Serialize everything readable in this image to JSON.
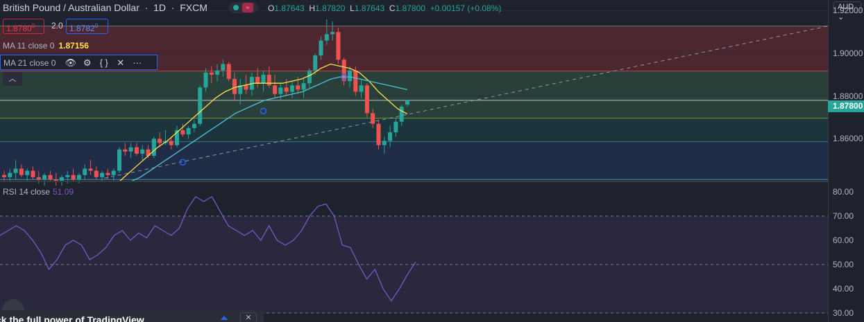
{
  "header": {
    "symbol": "British Pound / Australian Dollar",
    "interval": "1D",
    "exchange": "FXCM",
    "ohlc": {
      "o_label": "O",
      "o": "1.87643",
      "h_label": "H",
      "h": "1.87820",
      "l_label": "L",
      "l": "1.87643",
      "c_label": "C",
      "c": "1.87800",
      "change": "+0.00157 (+0.08%)"
    }
  },
  "trade": {
    "sell": "1.8780",
    "sell_sup": "0",
    "spread": "2.0",
    "buy": "1.8782",
    "buy_sup": "0"
  },
  "indicators": {
    "ma11": {
      "label": "MA 11 close 0",
      "value": "1.87156"
    },
    "ma21": {
      "label": "MA 21 close 0"
    },
    "rsi": {
      "label": "RSI 14 close",
      "value": "51.09"
    }
  },
  "axis": {
    "currency": "AUD",
    "current_price": "1.87800"
  },
  "icons": [
    "eye-icon",
    "gear-icon",
    "braces-icon",
    "close-icon",
    "more-icon",
    "chevron-up-icon",
    "chevron-down-icon"
  ],
  "ad": {
    "text": "ck the full power of TradingView",
    "close": "✕"
  },
  "colors": {
    "up": "#26a69a",
    "down": "#ef5350",
    "ma11": "#ffe14a",
    "ma21": "#4fc3dc",
    "rsi": "#7e57c2",
    "fib_top": "#5c2a32",
    "fib_mid": "#2c4a3f",
    "fib_low": "#1c3b40",
    "fib_base": "#233050"
  },
  "chart_data": [
    {
      "type": "candlestick",
      "title": "British Pound / Australian Dollar · 1D · FXCM",
      "ylim": [
        1.84,
        1.925
      ],
      "y_ticks": [
        "1.92000",
        "1.90000",
        "1.88000",
        "1.86000"
      ],
      "fib_levels": [
        1.9128,
        1.8917,
        1.878,
        1.8696,
        1.8586,
        1.8409
      ],
      "candles": [
        [
          1.843,
          1.845,
          1.84,
          1.842
        ],
        [
          1.842,
          1.846,
          1.84,
          1.844
        ],
        [
          1.844,
          1.85,
          1.841,
          1.846
        ],
        [
          1.846,
          1.848,
          1.842,
          1.843
        ],
        [
          1.843,
          1.846,
          1.84,
          1.845
        ],
        [
          1.845,
          1.847,
          1.841,
          1.842
        ],
        [
          1.842,
          1.845,
          1.839,
          1.841
        ],
        [
          1.841,
          1.844,
          1.838,
          1.843
        ],
        [
          1.843,
          1.845,
          1.84,
          1.841
        ],
        [
          1.841,
          1.844,
          1.838,
          1.84
        ],
        [
          1.84,
          1.843,
          1.838,
          1.842
        ],
        [
          1.842,
          1.845,
          1.839,
          1.843
        ],
        [
          1.843,
          1.846,
          1.84,
          1.841
        ],
        [
          1.841,
          1.844,
          1.839,
          1.843
        ],
        [
          1.843,
          1.848,
          1.841,
          1.846
        ],
        [
          1.846,
          1.85,
          1.843,
          1.845
        ],
        [
          1.845,
          1.847,
          1.841,
          1.842
        ],
        [
          1.842,
          1.845,
          1.84,
          1.844
        ],
        [
          1.844,
          1.846,
          1.841,
          1.843
        ],
        [
          1.843,
          1.846,
          1.84,
          1.845
        ],
        [
          1.845,
          1.856,
          1.844,
          1.855
        ],
        [
          1.855,
          1.858,
          1.852,
          1.854
        ],
        [
          1.854,
          1.858,
          1.851,
          1.856
        ],
        [
          1.856,
          1.858,
          1.852,
          1.853
        ],
        [
          1.853,
          1.857,
          1.85,
          1.855
        ],
        [
          1.855,
          1.857,
          1.851,
          1.852
        ],
        [
          1.852,
          1.861,
          1.851,
          1.86
        ],
        [
          1.86,
          1.863,
          1.856,
          1.858
        ],
        [
          1.858,
          1.864,
          1.857,
          1.859
        ],
        [
          1.859,
          1.861,
          1.855,
          1.857
        ],
        [
          1.857,
          1.866,
          1.856,
          1.864
        ],
        [
          1.864,
          1.867,
          1.861,
          1.862
        ],
        [
          1.862,
          1.866,
          1.86,
          1.865
        ],
        [
          1.865,
          1.869,
          1.863,
          1.867
        ],
        [
          1.867,
          1.885,
          1.866,
          1.884
        ],
        [
          1.884,
          1.893,
          1.882,
          1.891
        ],
        [
          1.891,
          1.894,
          1.886,
          1.89
        ],
        [
          1.89,
          1.895,
          1.887,
          1.892
        ],
        [
          1.892,
          1.897,
          1.889,
          1.895
        ],
        [
          1.895,
          1.896,
          1.887,
          1.888
        ],
        [
          1.888,
          1.891,
          1.878,
          1.881
        ],
        [
          1.881,
          1.888,
          1.876,
          1.885
        ],
        [
          1.885,
          1.89,
          1.881,
          1.883
        ],
        [
          1.883,
          1.891,
          1.88,
          1.889
        ],
        [
          1.889,
          1.893,
          1.884,
          1.886
        ],
        [
          1.886,
          1.892,
          1.882,
          1.89
        ],
        [
          1.89,
          1.894,
          1.884,
          1.885
        ],
        [
          1.885,
          1.89,
          1.879,
          1.881
        ],
        [
          1.881,
          1.886,
          1.878,
          1.884
        ],
        [
          1.884,
          1.888,
          1.88,
          1.882
        ],
        [
          1.882,
          1.887,
          1.879,
          1.885
        ],
        [
          1.885,
          1.889,
          1.881,
          1.883
        ],
        [
          1.883,
          1.888,
          1.879,
          1.886
        ],
        [
          1.886,
          1.893,
          1.884,
          1.892
        ],
        [
          1.892,
          1.9,
          1.89,
          1.899
        ],
        [
          1.899,
          1.908,
          1.897,
          1.906
        ],
        [
          1.906,
          1.916,
          1.904,
          1.909
        ],
        [
          1.909,
          1.915,
          1.906,
          1.91
        ],
        [
          1.91,
          1.912,
          1.895,
          1.897
        ],
        [
          1.897,
          1.898,
          1.885,
          1.887
        ],
        [
          1.887,
          1.894,
          1.884,
          1.892
        ],
        [
          1.892,
          1.894,
          1.88,
          1.882
        ],
        [
          1.882,
          1.888,
          1.879,
          1.885
        ],
        [
          1.885,
          1.886,
          1.87,
          1.872
        ],
        [
          1.872,
          1.874,
          1.865,
          1.867
        ],
        [
          1.867,
          1.869,
          1.855,
          1.857
        ],
        [
          1.857,
          1.861,
          1.853,
          1.859
        ],
        [
          1.859,
          1.866,
          1.856,
          1.863
        ],
        [
          1.863,
          1.87,
          1.861,
          1.868
        ],
        [
          1.868,
          1.876,
          1.866,
          1.875
        ],
        [
          1.876,
          1.878,
          1.875,
          1.878
        ]
      ],
      "ma11": [
        1.84,
        1.844,
        1.848,
        1.852,
        1.856,
        1.859,
        1.863,
        1.867,
        1.871,
        1.875,
        1.879,
        1.882,
        1.884,
        1.885,
        1.886,
        1.886,
        1.886,
        1.886,
        1.887,
        1.888,
        1.89,
        1.893,
        1.895,
        1.894,
        1.893,
        1.891,
        1.887,
        1.882,
        1.878,
        1.874,
        1.8716
      ],
      "ma21": [
        1.84,
        1.842,
        1.845,
        1.848,
        1.851,
        1.854,
        1.857,
        1.86,
        1.863,
        1.866,
        1.869,
        1.872,
        1.874,
        1.876,
        1.878,
        1.879,
        1.88,
        1.881,
        1.882,
        1.884,
        1.886,
        1.888,
        1.889,
        1.889,
        1.888,
        1.887,
        1.886,
        1.885,
        1.884,
        1.883
      ]
    },
    {
      "type": "line",
      "title": "RSI 14 close",
      "ylim": [
        30,
        80
      ],
      "y_ticks": [
        "80.00",
        "70.00",
        "60.00",
        "50.00",
        "40.00",
        "30.00"
      ],
      "bands": [
        70,
        50,
        30
      ],
      "series": [
        {
          "name": "RSI 14 close",
          "values": [
            62,
            64,
            66,
            64,
            60,
            55,
            48,
            52,
            58,
            60,
            58,
            52,
            54,
            57,
            62,
            64,
            60,
            63,
            61,
            66,
            64,
            62,
            65,
            73,
            78,
            76,
            78,
            72,
            66,
            64,
            62,
            64,
            60,
            66,
            60,
            58,
            60,
            64,
            70,
            74,
            75,
            70,
            58,
            57,
            50,
            44,
            48,
            40,
            35,
            40,
            46,
            51.09
          ]
        }
      ]
    }
  ]
}
